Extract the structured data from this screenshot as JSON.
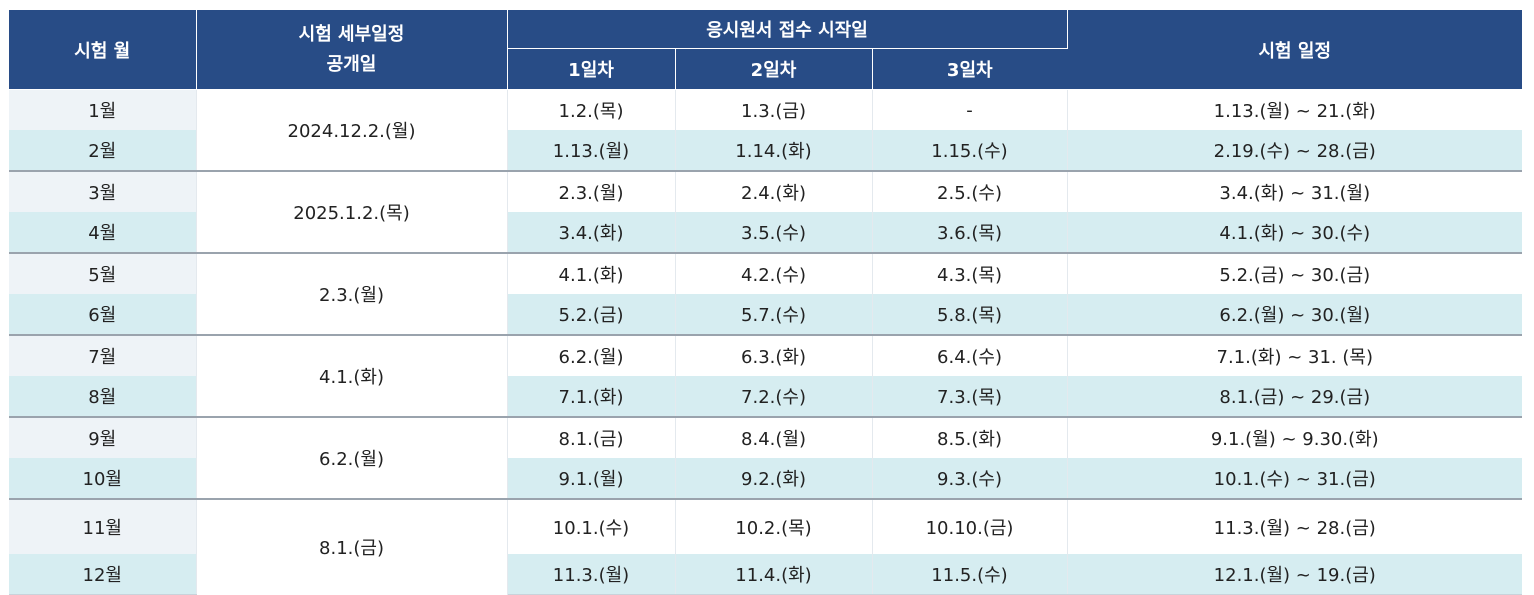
{
  "header": {
    "exam_month": "시험 월",
    "publish_line1": "시험 세부일정",
    "publish_line2": "공개일",
    "application_start": "응시원서 접수 시작일",
    "day1": "1일차",
    "day2": "2일차",
    "day3": "3일차",
    "exam_schedule": "시험 일정"
  },
  "groups": [
    {
      "publish_date": "2024.12.2.(월)",
      "rows": [
        {
          "month": "1월",
          "day1": "1.2.(목)",
          "day2": "1.3.(금)",
          "day3": "-",
          "schedule": "1.13.(월) ~ 21.(화)"
        },
        {
          "month": "2월",
          "day1": "1.13.(월)",
          "day2": "1.14.(화)",
          "day3": "1.15.(수)",
          "schedule": "2.19.(수) ~ 28.(금)"
        }
      ]
    },
    {
      "publish_date": "2025.1.2.(목)",
      "rows": [
        {
          "month": "3월",
          "day1": "2.3.(월)",
          "day2": "2.4.(화)",
          "day3": "2.5.(수)",
          "schedule": "3.4.(화) ~ 31.(월)"
        },
        {
          "month": "4월",
          "day1": "3.4.(화)",
          "day2": "3.5.(수)",
          "day3": "3.6.(목)",
          "schedule": "4.1.(화) ~ 30.(수)"
        }
      ]
    },
    {
      "publish_date": "2.3.(월)",
      "rows": [
        {
          "month": "5월",
          "day1": "4.1.(화)",
          "day2": "4.2.(수)",
          "day3": "4.3.(목)",
          "schedule": "5.2.(금) ~ 30.(금)"
        },
        {
          "month": "6월",
          "day1": "5.2.(금)",
          "day2": "5.7.(수)",
          "day3": "5.8.(목)",
          "schedule": "6.2.(월) ~ 30.(월)"
        }
      ]
    },
    {
      "publish_date": "4.1.(화)",
      "rows": [
        {
          "month": "7월",
          "day1": "6.2.(월)",
          "day2": "6.3.(화)",
          "day3": "6.4.(수)",
          "schedule": "7.1.(화) ~ 31. (목)"
        },
        {
          "month": "8월",
          "day1": "7.1.(화)",
          "day2": "7.2.(수)",
          "day3": "7.3.(목)",
          "schedule": "8.1.(금) ~ 29.(금)"
        }
      ]
    },
    {
      "publish_date": "6.2.(월)",
      "rows": [
        {
          "month": "9월",
          "day1": "8.1.(금)",
          "day2": "8.4.(월)",
          "day3": "8.5.(화)",
          "schedule": "9.1.(월) ~ 9.30.(화)"
        },
        {
          "month": "10월",
          "day1": "9.1.(월)",
          "day2": "9.2.(화)",
          "day3": "9.3.(수)",
          "schedule": "10.1.(수) ~ 31.(금)"
        }
      ]
    },
    {
      "publish_date": "8.1.(금)",
      "rows": [
        {
          "month": "11월",
          "day1": "10.1.(수)",
          "day2": "10.2.(목)",
          "day3": "10.10.(금)",
          "schedule": "11.3.(월) ~ 28.(금)"
        },
        {
          "month": "12월",
          "day1": "11.3.(월)",
          "day2": "11.4.(화)",
          "day3": "11.5.(수)",
          "schedule": "12.1.(월) ~ 19.(금)"
        }
      ]
    }
  ]
}
